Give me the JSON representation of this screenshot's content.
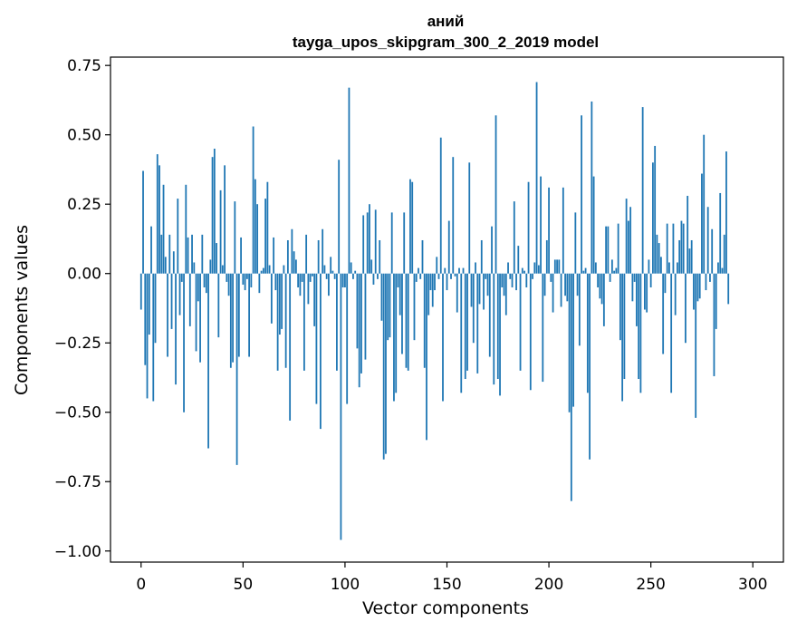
{
  "chart_data": {
    "type": "bar",
    "title_line1": "аний",
    "title_line2": "tayga_upos_skipgram_300_2_2019 model",
    "xlabel": "Vector components",
    "ylabel": "Components values",
    "xlim": [
      -15,
      315
    ],
    "ylim": [
      -1.04,
      0.78
    ],
    "xticks": [
      0,
      50,
      100,
      150,
      200,
      250,
      300
    ],
    "yticks": [
      0.75,
      0.5,
      0.25,
      0.0,
      -0.25,
      -0.5,
      -0.75,
      -1.0
    ],
    "ytick_labels": [
      "0.75",
      "0.50",
      "0.25",
      "0.00",
      "−0.25",
      "−0.50",
      "−0.75",
      "−1.00"
    ],
    "bar_color": "#1f77b4",
    "values": [
      -0.13,
      0.37,
      -0.33,
      -0.45,
      -0.22,
      0.17,
      -0.46,
      -0.25,
      0.43,
      0.39,
      0.14,
      0.32,
      0.06,
      -0.3,
      0.14,
      -0.2,
      0.08,
      -0.4,
      0.27,
      -0.15,
      -0.03,
      -0.5,
      0.32,
      0.13,
      -0.19,
      0.14,
      0.04,
      -0.28,
      -0.1,
      -0.32,
      0.14,
      -0.05,
      -0.07,
      -0.63,
      0.05,
      0.42,
      0.45,
      0.11,
      -0.23,
      0.3,
      0.03,
      0.39,
      -0.03,
      -0.08,
      -0.34,
      -0.32,
      0.26,
      -0.69,
      -0.3,
      0.13,
      -0.04,
      -0.06,
      -0.02,
      -0.3,
      -0.05,
      0.53,
      0.34,
      0.25,
      -0.07,
      0.01,
      0.02,
      0.27,
      0.33,
      0.03,
      -0.18,
      0.13,
      -0.06,
      -0.35,
      -0.22,
      -0.2,
      0.03,
      -0.34,
      0.12,
      -0.53,
      0.16,
      0.08,
      0.05,
      -0.05,
      -0.08,
      -0.03,
      -0.35,
      0.14,
      -0.11,
      -0.03,
      -0.01,
      -0.19,
      -0.47,
      0.12,
      -0.56,
      0.16,
      0.03,
      -0.02,
      -0.08,
      0.06,
      0.01,
      -0.02,
      -0.35,
      0.41,
      -0.96,
      -0.05,
      -0.05,
      -0.47,
      0.67,
      0.04,
      -0.02,
      0.01,
      -0.27,
      -0.41,
      -0.36,
      0.21,
      -0.31,
      0.22,
      0.25,
      0.05,
      -0.04,
      0.23,
      -0.02,
      0.12,
      -0.17,
      -0.67,
      -0.65,
      -0.24,
      -0.23,
      0.22,
      -0.46,
      -0.43,
      -0.05,
      -0.15,
      -0.29,
      0.22,
      -0.34,
      -0.35,
      0.34,
      0.33,
      -0.24,
      -0.03,
      0.02,
      -0.02,
      0.12,
      -0.34,
      -0.6,
      -0.15,
      -0.06,
      -0.12,
      -0.06,
      0.06,
      -0.02,
      0.49,
      -0.46,
      0.02,
      -0.06,
      0.19,
      -0.02,
      0.42,
      -0.01,
      -0.14,
      0.02,
      -0.43,
      0.02,
      -0.38,
      -0.35,
      0.4,
      -0.12,
      -0.25,
      0.04,
      -0.36,
      -0.11,
      0.12,
      -0.13,
      -0.02,
      -0.08,
      -0.3,
      0.17,
      -0.4,
      0.57,
      -0.38,
      -0.44,
      -0.05,
      -0.08,
      -0.15,
      0.04,
      -0.02,
      -0.05,
      0.26,
      -0.06,
      0.1,
      -0.35,
      0.02,
      0.01,
      -0.05,
      0.33,
      -0.42,
      -0.02,
      0.04,
      0.69,
      0.03,
      0.35,
      -0.39,
      -0.08,
      0.12,
      0.31,
      -0.03,
      -0.14,
      0.05,
      0.05,
      0.05,
      -0.12,
      0.31,
      -0.08,
      -0.1,
      -0.5,
      -0.82,
      -0.48,
      0.22,
      -0.08,
      -0.26,
      0.57,
      0.01,
      0.02,
      -0.43,
      -0.67,
      0.62,
      0.35,
      0.04,
      -0.05,
      -0.09,
      -0.11,
      -0.19,
      0.17,
      0.17,
      -0.03,
      0.05,
      0.01,
      0.02,
      0.18,
      -0.24,
      -0.46,
      -0.38,
      0.27,
      0.19,
      0.24,
      -0.1,
      -0.03,
      -0.19,
      -0.38,
      -0.43,
      0.6,
      -0.13,
      -0.14,
      0.05,
      -0.05,
      0.4,
      0.46,
      0.14,
      0.11,
      0.06,
      -0.29,
      -0.07,
      0.18,
      0.04,
      -0.43,
      0.18,
      -0.15,
      0.04,
      0.12,
      0.19,
      0.18,
      -0.25,
      0.28,
      0.09,
      0.12,
      -0.13,
      -0.52,
      -0.1,
      -0.09,
      0.36,
      0.5,
      -0.06,
      0.24,
      -0.03,
      0.16,
      -0.37,
      -0.2,
      0.04,
      0.29,
      0.02,
      0.14,
      0.44,
      -0.11
    ]
  }
}
